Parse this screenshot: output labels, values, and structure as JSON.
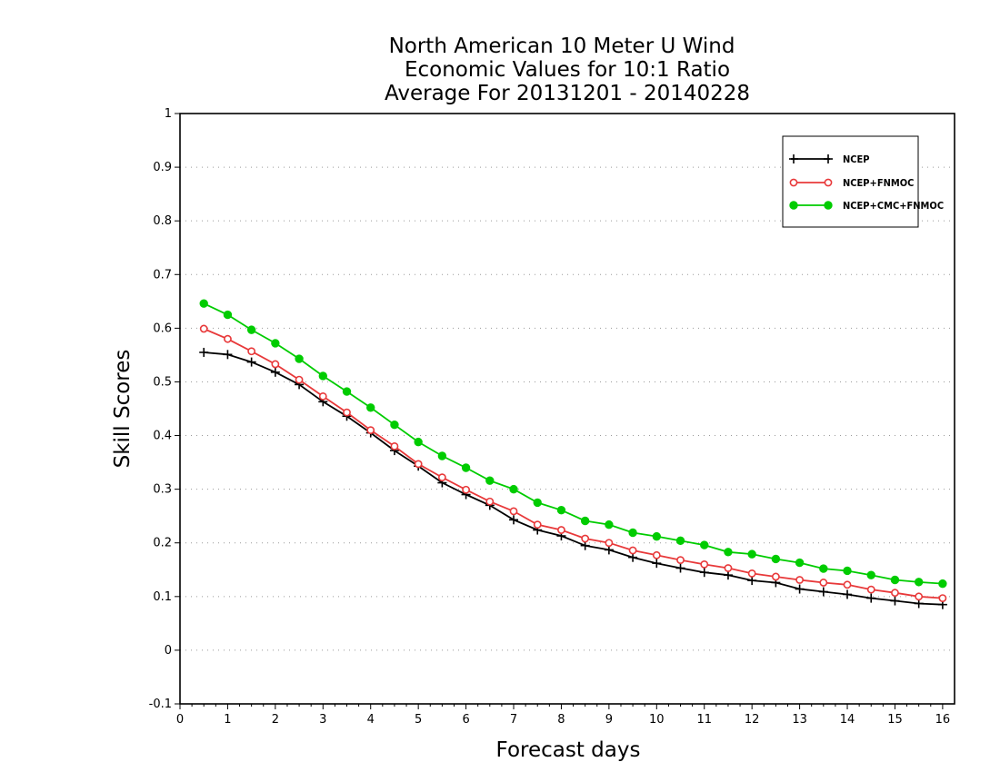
{
  "chart_data": {
    "type": "line",
    "title_lines": [
      "North American 10 Meter U Wind",
      "Economic Values for 10:1 Ratio",
      "Average For 20131201 - 20140228"
    ],
    "xlabel": "Forecast days",
    "ylabel": "Skill Scores",
    "xlim": [
      0,
      16.25
    ],
    "ylim": [
      -0.1,
      1
    ],
    "x_ticks": [
      0,
      1,
      2,
      3,
      4,
      5,
      6,
      7,
      8,
      9,
      10,
      11,
      12,
      13,
      14,
      15,
      16
    ],
    "y_ticks": [
      -0.1,
      0,
      0.1,
      0.2,
      0.3,
      0.4,
      0.5,
      0.6,
      0.7,
      0.8,
      0.9,
      1
    ],
    "y_tick_labels": [
      "-0.1",
      "0",
      "0.1",
      "0.2",
      "0.3",
      "0.4",
      "0.5",
      "0.6",
      "0.7",
      "0.8",
      "0.9",
      "1"
    ],
    "grid": "dotted horizontal",
    "legend_position": "top-right",
    "x": [
      0.5,
      1,
      1.5,
      2,
      2.5,
      3,
      3.5,
      4,
      4.5,
      5,
      5.5,
      6,
      6.5,
      7,
      7.5,
      8,
      8.5,
      9,
      9.5,
      10,
      10.5,
      11,
      11.5,
      12,
      12.5,
      13,
      13.5,
      14,
      14.5,
      15,
      15.5,
      16
    ],
    "series": [
      {
        "name": "NCEP",
        "color": "#000000",
        "marker": "plus",
        "values": [
          0.555,
          0.551,
          0.537,
          0.518,
          0.495,
          0.463,
          0.436,
          0.405,
          0.372,
          0.343,
          0.312,
          0.29,
          0.27,
          0.243,
          0.224,
          0.213,
          0.195,
          0.187,
          0.173,
          0.162,
          0.153,
          0.145,
          0.14,
          0.13,
          0.126,
          0.114,
          0.109,
          0.104,
          0.097,
          0.092,
          0.087,
          0.085
        ]
      },
      {
        "name": "NCEP+FNMOC",
        "color": "#e8393a",
        "marker": "open-circle",
        "values": [
          0.599,
          0.58,
          0.557,
          0.533,
          0.504,
          0.473,
          0.443,
          0.41,
          0.38,
          0.347,
          0.322,
          0.299,
          0.277,
          0.259,
          0.234,
          0.224,
          0.208,
          0.2,
          0.186,
          0.177,
          0.168,
          0.16,
          0.153,
          0.143,
          0.137,
          0.131,
          0.126,
          0.122,
          0.113,
          0.107,
          0.1,
          0.097
        ]
      },
      {
        "name": "NCEP+CMC+FNMOC",
        "color": "#00cc00",
        "marker": "filled-circle",
        "values": [
          0.646,
          0.625,
          0.597,
          0.572,
          0.543,
          0.511,
          0.482,
          0.452,
          0.42,
          0.388,
          0.362,
          0.34,
          0.316,
          0.3,
          0.275,
          0.261,
          0.241,
          0.234,
          0.219,
          0.212,
          0.204,
          0.196,
          0.183,
          0.179,
          0.17,
          0.163,
          0.152,
          0.148,
          0.14,
          0.131,
          0.127,
          0.124
        ]
      }
    ]
  }
}
